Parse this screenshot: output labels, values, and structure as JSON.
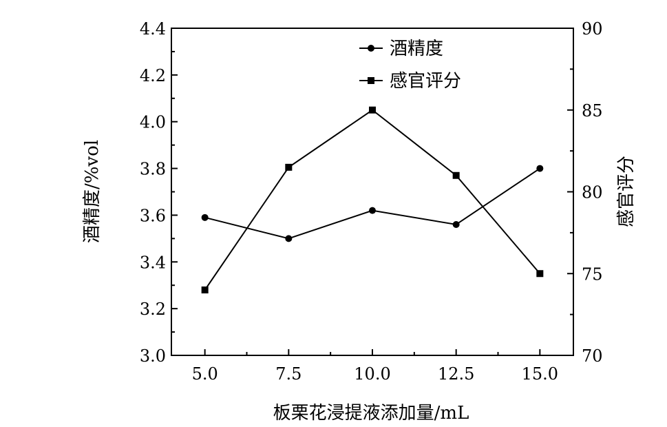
{
  "chart_data": {
    "type": "line",
    "x": [
      5.0,
      7.5,
      10.0,
      12.5,
      15.0
    ],
    "x_tick_labels": [
      "5.0",
      "7.5",
      "10.0",
      "12.5",
      "15.0"
    ],
    "xlabel": "板栗花浸提液添加量/mL",
    "ylabel_left": "酒精度/%vol",
    "ylabel_right": "感官评分",
    "xlim": [
      4.0,
      16.0
    ],
    "ylim_left": [
      3.0,
      4.4
    ],
    "ylim_right": [
      70,
      90
    ],
    "y_left_ticks": [
      3.0,
      3.2,
      3.4,
      3.6,
      3.8,
      4.0,
      4.2,
      4.4
    ],
    "y_left_tick_labels": [
      "3.0",
      "3.2",
      "3.4",
      "3.6",
      "3.8",
      "4.0",
      "4.2",
      "4.4"
    ],
    "y_right_ticks": [
      70,
      75,
      80,
      85,
      90
    ],
    "y_right_tick_labels": [
      "70",
      "75",
      "80",
      "85",
      "90"
    ],
    "grid": false,
    "legend_position": "top-center",
    "series": [
      {
        "name": "酒精度",
        "axis": "left",
        "marker": "circle",
        "color": "#000000",
        "values": [
          3.59,
          3.5,
          3.62,
          3.56,
          3.8
        ]
      },
      {
        "name": "感官评分",
        "axis": "right",
        "marker": "square",
        "color": "#000000",
        "values": [
          74.0,
          81.5,
          85.0,
          81.0,
          75.0
        ]
      }
    ]
  }
}
